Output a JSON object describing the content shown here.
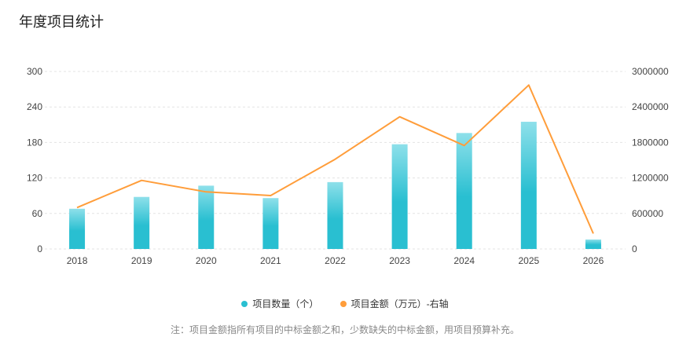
{
  "title": "年度项目统计",
  "note": "注：项目金额指所有项目的中标金额之和，少数缺失的中标金额，用项目预算补充。",
  "colors": {
    "bar_top": "#8ee0ea",
    "bar_bottom": "#29bfd1",
    "line": "#ff9d3a",
    "grid": "#e3e3e3"
  },
  "chart_data": {
    "type": "bar+line",
    "title": "年度项目统计",
    "categories": [
      "2018",
      "2019",
      "2020",
      "2021",
      "2022",
      "2023",
      "2024",
      "2025",
      "2026"
    ],
    "series": [
      {
        "name": "项目数量（个）",
        "type": "bar",
        "axis": "left",
        "values": [
          68,
          88,
          107,
          86,
          113,
          177,
          196,
          215,
          16
        ]
      },
      {
        "name": "项目金额（万元）-右轴",
        "type": "line",
        "axis": "right",
        "values": [
          700000,
          1159000,
          965000,
          903000,
          1517000,
          2234000,
          1748000,
          2770000,
          261000
        ]
      }
    ],
    "left_axis": {
      "ylim": [
        0,
        300
      ],
      "ticks": [
        "0",
        "60",
        "120",
        "180",
        "240",
        "300"
      ]
    },
    "right_axis": {
      "ylim": [
        0,
        3000000
      ],
      "ticks": [
        "0",
        "600000",
        "1200000",
        "1800000",
        "2400000",
        "3000000"
      ]
    },
    "grid": true,
    "legend_position": "bottom"
  }
}
